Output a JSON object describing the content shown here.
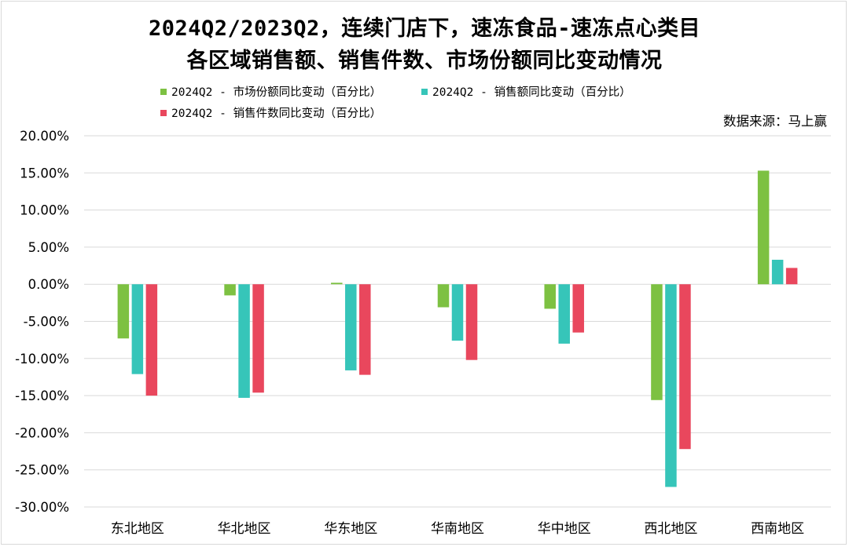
{
  "chart_data": {
    "type": "bar",
    "title_line1": "2024Q2/2023Q2，连续门店下，速冻食品-速冻点心类目",
    "title_line2": "各区域销售额、销售件数、市场份额同比变动情况",
    "source": "数据来源：马上赢",
    "categories": [
      "东北地区",
      "华北地区",
      "华东地区",
      "华南地区",
      "华中地区",
      "西北地区",
      "西南地区"
    ],
    "series": [
      {
        "name": "2024Q2 - 市场份额同比变动（百分比）",
        "color": "#7dc142",
        "values": [
          -7.3,
          -1.5,
          0.2,
          -3.1,
          -3.3,
          -15.6,
          15.3
        ]
      },
      {
        "name": "2024Q2 - 销售额同比变动（百分比）",
        "color": "#36c5b9",
        "values": [
          -12.1,
          -15.3,
          -11.6,
          -7.6,
          -8.0,
          -27.3,
          3.3
        ]
      },
      {
        "name": "2024Q2 - 销售件数同比变动（百分比）",
        "color": "#e9475d",
        "values": [
          -15.0,
          -14.6,
          -12.2,
          -10.2,
          -6.5,
          -22.2,
          2.2
        ]
      }
    ],
    "yticks": [
      "20.00%",
      "15.00%",
      "10.00%",
      "5.00%",
      "0.00%",
      "-5.00%",
      "-10.00%",
      "-15.00%",
      "-20.00%",
      "-25.00%",
      "-30.00%"
    ],
    "ylim": [
      -30,
      20
    ],
    "grid": true,
    "legend_position": "top"
  }
}
